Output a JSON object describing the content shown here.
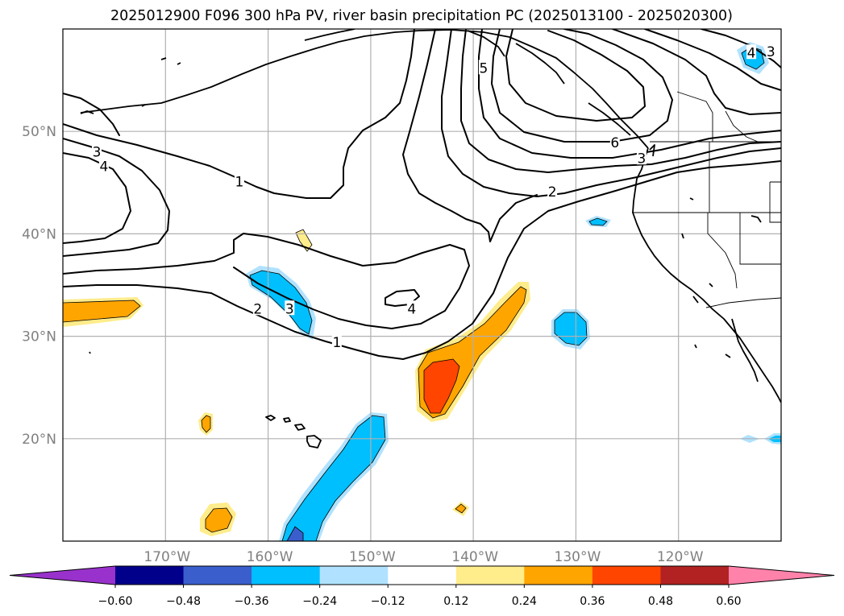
{
  "title": "2025012900 F096 300 hPa PV, river basin precipitation PC (2025013100 - 2025020300)",
  "map": {
    "extent": {
      "lon_min": -180,
      "lon_max": -110,
      "lat_min": 10,
      "lat_max": 60
    },
    "lon_ticks": [
      {
        "lon": -170,
        "label": "170°W"
      },
      {
        "lon": -160,
        "label": "160°W"
      },
      {
        "lon": -150,
        "label": "150°W"
      },
      {
        "lon": -140,
        "label": "140°W"
      },
      {
        "lon": -130,
        "label": "130°W"
      },
      {
        "lon": -120,
        "label": "120°W"
      }
    ],
    "lat_ticks": [
      {
        "lat": 50,
        "label": "50°N"
      },
      {
        "lat": 40,
        "label": "40°N"
      },
      {
        "lat": 30,
        "label": "30°N"
      },
      {
        "lat": 20,
        "label": "20°N"
      }
    ],
    "grid": true,
    "pv_contour_labels": [
      {
        "text": "5",
        "lon": -139.0,
        "lat": 56.2
      },
      {
        "text": "4",
        "lon": -112.9,
        "lat": 57.7
      },
      {
        "text": "3",
        "lon": -111.0,
        "lat": 57.8
      },
      {
        "text": "6",
        "lon": -126.2,
        "lat": 48.9
      },
      {
        "text": "3",
        "lon": -123.6,
        "lat": 47.4
      },
      {
        "text": "2",
        "lon": -132.3,
        "lat": 44.1
      },
      {
        "text": "3",
        "lon": -176.7,
        "lat": 48.0
      },
      {
        "text": "4",
        "lon": -176.0,
        "lat": 46.6
      },
      {
        "text": "1",
        "lon": -162.8,
        "lat": 45.1
      },
      {
        "text": "2",
        "lon": -161.0,
        "lat": 32.7
      },
      {
        "text": "3",
        "lon": -157.9,
        "lat": 32.7
      },
      {
        "text": "4",
        "lon": -146.0,
        "lat": 32.7
      },
      {
        "text": "1",
        "lon": -153.3,
        "lat": 29.4
      }
    ]
  },
  "colorbar": {
    "ticks": [
      "−0.60",
      "−0.48",
      "−0.36",
      "−0.24",
      "−0.12",
      "0.12",
      "0.24",
      "0.36",
      "0.48",
      "0.60"
    ],
    "colors": [
      "#9932cc",
      "#00008b",
      "#3a5fcd",
      "#00bfff",
      "#b0e2ff",
      "#ffffff",
      "#ffec8b",
      "#ffa500",
      "#ff4500",
      "#b22222",
      "#ff82ab"
    ],
    "extend": "both"
  }
}
